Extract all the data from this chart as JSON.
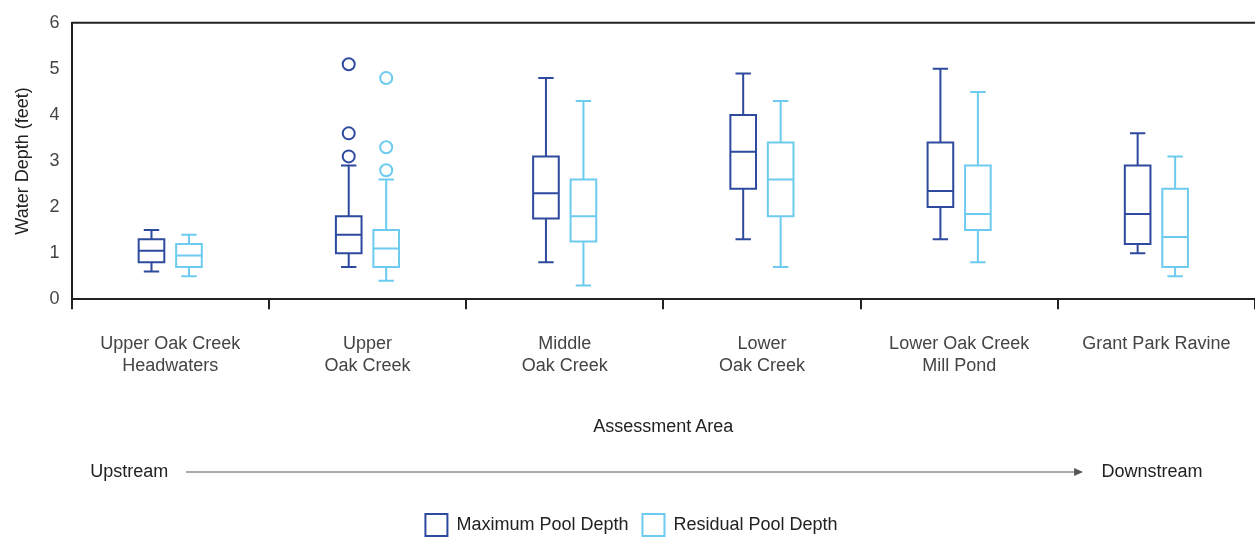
{
  "chart_data": {
    "type": "box",
    "xlabel": "Assessment Area",
    "ylabel": "Water Depth (feet)",
    "categories": [
      "Upper Oak Creek\nHeadwaters",
      "Upper\nOak Creek",
      "Middle\nOak Creek",
      "Lower\nOak Creek",
      "Lower Oak Creek\nMill Pond",
      "Grant Park Ravine"
    ],
    "ylim": [
      0,
      6
    ],
    "yticks": [
      0,
      1,
      2,
      3,
      4,
      5,
      6
    ],
    "grid": false,
    "legend": "bottom",
    "annotations": [
      "Upstream",
      "Downstream"
    ],
    "series": [
      {
        "name": "Maximum Pool Depth",
        "color": "#2e4a9e",
        "boxes": [
          {
            "low": 0.6,
            "q1": 0.8,
            "median": 1.05,
            "q3": 1.3,
            "high": 1.5
          },
          {
            "low": 0.7,
            "q1": 1.0,
            "median": 1.4,
            "q3": 1.8,
            "high": 2.9,
            "outliers": [
              3.1,
              3.6,
              5.1
            ]
          },
          {
            "low": 0.8,
            "q1": 1.75,
            "median": 2.3,
            "q3": 3.1,
            "high": 4.8
          },
          {
            "low": 1.3,
            "q1": 2.4,
            "median": 3.2,
            "q3": 4.0,
            "high": 4.9
          },
          {
            "low": 1.3,
            "q1": 2.0,
            "median": 2.35,
            "q3": 3.4,
            "high": 5.0
          },
          {
            "low": 1.0,
            "q1": 1.2,
            "median": 1.85,
            "q3": 2.9,
            "high": 3.6
          }
        ]
      },
      {
        "name": "Residual Pool Depth",
        "color": "#6ccbef",
        "boxes": [
          {
            "low": 0.5,
            "q1": 0.7,
            "median": 0.95,
            "q3": 1.2,
            "high": 1.4
          },
          {
            "low": 0.4,
            "q1": 0.7,
            "median": 1.1,
            "q3": 1.5,
            "high": 2.6,
            "outliers": [
              2.8,
              3.3,
              4.8
            ]
          },
          {
            "low": 0.3,
            "q1": 1.25,
            "median": 1.8,
            "q3": 2.6,
            "high": 4.3
          },
          {
            "low": 0.7,
            "q1": 1.8,
            "median": 2.6,
            "q3": 3.4,
            "high": 4.3
          },
          {
            "low": 0.8,
            "q1": 1.5,
            "median": 1.85,
            "q3": 2.9,
            "high": 4.5
          },
          {
            "low": 0.5,
            "q1": 0.7,
            "median": 1.35,
            "q3": 2.4,
            "high": 3.1
          }
        ]
      }
    ]
  }
}
